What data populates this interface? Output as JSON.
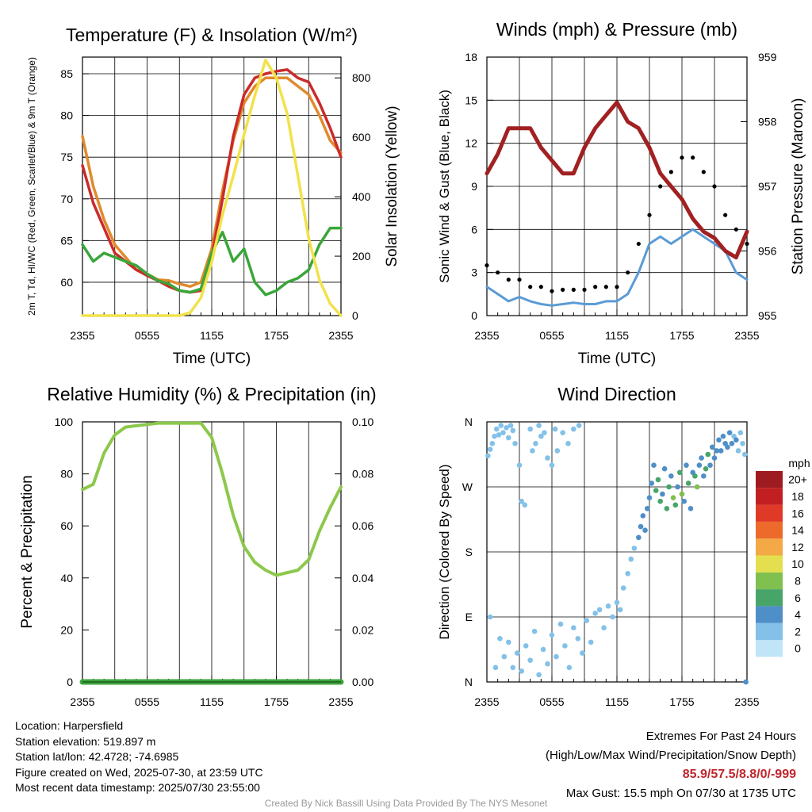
{
  "chart_data": [
    {
      "type": "line",
      "title": "Temperature (F) & Insolation (W/m²)",
      "xlabel": "Time (UTC)",
      "ylabel": "2m T, Td, HI/WC (Red, Green, Scarlet/Blue) & 9m T (Orange)",
      "ylabel_right": "Solar Insolation (Yellow)",
      "x_ticks": [
        "2355",
        "0555",
        "1155",
        "1755",
        "2355"
      ],
      "ylim": [
        56,
        87
      ],
      "y_ticks": [
        60,
        65,
        70,
        75,
        80,
        85
      ],
      "ylim_right": [
        0,
        870
      ],
      "y_ticks_right": [
        0,
        200,
        400,
        600,
        800
      ],
      "x_hours": [
        0,
        1,
        2,
        3,
        4,
        5,
        6,
        7,
        8,
        9,
        10,
        11,
        12,
        13,
        14,
        15,
        16,
        17,
        18,
        19,
        20,
        21,
        22,
        23,
        24
      ],
      "series": [
        {
          "color": "#e08a2c",
          "axis": "left",
          "values": [
            77.5,
            71.5,
            67.5,
            64.5,
            63,
            61.5,
            61,
            60.3,
            60.2,
            59.8,
            59.5,
            60,
            64,
            71,
            77,
            81.5,
            83.5,
            84.5,
            84.5,
            84.5,
            83.5,
            82.5,
            80,
            77,
            75.5
          ]
        },
        {
          "color": "#cc2a2a",
          "axis": "left",
          "values": [
            74,
            69.5,
            66.5,
            63.5,
            62.5,
            61.5,
            60.8,
            60.2,
            59.5,
            59,
            58.8,
            59,
            63,
            70,
            77.5,
            82.5,
            84.5,
            85,
            85.3,
            85.5,
            84.5,
            84,
            81.5,
            78.5,
            75
          ]
        },
        {
          "color": "#3aa63a",
          "axis": "left",
          "values": [
            64.5,
            62.5,
            63.5,
            63,
            62.5,
            62,
            61,
            60.2,
            59.8,
            59,
            58.8,
            59.2,
            63.5,
            66,
            62.5,
            64,
            60,
            58.5,
            59,
            60,
            60.5,
            61.5,
            64.5,
            66.5,
            66.5
          ]
        },
        {
          "color": "#f2e24a",
          "axis": "right",
          "values": [
            0,
            0,
            0,
            0,
            0,
            0,
            0,
            0,
            0,
            0,
            10,
            60,
            180,
            340,
            470,
            610,
            740,
            860,
            800,
            680,
            470,
            260,
            120,
            40,
            0
          ]
        }
      ]
    },
    {
      "type": "scatter",
      "title": "Winds (mph) & Pressure (mb)",
      "xlabel": "Time (UTC)",
      "ylabel": "Sonic Wind & Gust (Blue, Black)",
      "ylabel_right": "Station Pressure (Maroon)",
      "x_ticks": [
        "2355",
        "0555",
        "1155",
        "1755",
        "2355"
      ],
      "ylim": [
        0,
        18
      ],
      "y_ticks": [
        0,
        3,
        6,
        9,
        12,
        15,
        18
      ],
      "ylim_right": [
        955,
        959
      ],
      "y_ticks_right": [
        955,
        956,
        957,
        958,
        959
      ],
      "x_hours": [
        0,
        1,
        2,
        3,
        4,
        5,
        6,
        7,
        8,
        9,
        10,
        11,
        12,
        13,
        14,
        15,
        16,
        17,
        18,
        19,
        20,
        21,
        22,
        23,
        24
      ],
      "series": [
        {
          "color": "#5b9bd5",
          "axis": "left",
          "values": [
            2,
            1.5,
            1,
            1.3,
            1,
            0.8,
            0.7,
            0.8,
            0.9,
            0.8,
            0.8,
            1,
            1,
            1.5,
            3,
            5,
            5.5,
            5,
            5.5,
            6,
            5.5,
            5,
            4.5,
            3,
            2.5
          ]
        },
        {
          "color": "#000000",
          "axis": "left",
          "values": [
            3.5,
            3,
            2.5,
            2.5,
            2,
            2,
            1.7,
            1.8,
            1.8,
            1.8,
            2,
            2,
            2,
            3,
            5,
            7,
            9,
            10,
            11,
            11,
            10,
            9,
            7,
            6,
            5
          ]
        },
        {
          "color": "#a12122",
          "axis": "right",
          "values": [
            957.2,
            957.5,
            957.9,
            957.9,
            957.9,
            957.6,
            957.4,
            957.2,
            957.2,
            957.6,
            957.9,
            958.1,
            958.3,
            958.0,
            957.9,
            957.6,
            957.2,
            957.0,
            956.8,
            956.5,
            956.3,
            956.2,
            956.0,
            955.9,
            956.3
          ]
        }
      ]
    },
    {
      "type": "line",
      "title": "Relative Humidity (%) & Precipitation (in)",
      "ylabel": "Percent & Precipitation",
      "x_ticks": [
        "2355",
        "0555",
        "1155",
        "1755",
        "2355"
      ],
      "ylim": [
        0,
        100
      ],
      "y_ticks": [
        0,
        20,
        40,
        60,
        80,
        100
      ],
      "ylim_right": [
        0,
        0.1
      ],
      "y_ticks_right": [
        "0.00",
        "0.02",
        "0.04",
        "0.06",
        "0.08",
        "0.10"
      ],
      "x_hours": [
        0,
        1,
        2,
        3,
        4,
        5,
        6,
        7,
        8,
        9,
        10,
        11,
        12,
        13,
        14,
        15,
        16,
        17,
        18,
        19,
        20,
        21,
        22,
        23,
        24
      ],
      "series": [
        {
          "color": "#8cc84b",
          "axis": "left",
          "values": [
            74,
            76,
            88,
            95,
            98,
            98.5,
            99,
            99.5,
            99.5,
            99.5,
            99.5,
            99.5,
            94,
            80,
            64,
            52,
            46,
            43,
            41,
            42,
            43,
            47,
            58,
            67,
            75
          ]
        },
        {
          "color": "#3aa63a",
          "axis": "right",
          "values": [
            0,
            0,
            0,
            0,
            0,
            0,
            0,
            0,
            0,
            0,
            0,
            0,
            0,
            0,
            0,
            0,
            0,
            0,
            0,
            0,
            0,
            0,
            0,
            0,
            0
          ]
        }
      ]
    },
    {
      "type": "scatter",
      "title": "Wind Direction",
      "ylabel": "Direction (Colored By Speed)",
      "x_ticks": [
        "2355",
        "0555",
        "1155",
        "1755",
        "2355"
      ],
      "y_ticks": [
        "N",
        "E",
        "S",
        "W",
        "N"
      ],
      "ylim_deg": [
        0,
        360
      ],
      "colorbar": {
        "title": "mph",
        "labels": [
          "0",
          "2",
          "4",
          "6",
          "8",
          "10",
          "12",
          "14",
          "16",
          "18",
          "20+"
        ],
        "colors": [
          "#bfe5f7",
          "#83c1e8",
          "#4f8fc8",
          "#47a56a",
          "#7fc04f",
          "#e3df4e",
          "#f4a947",
          "#ec6a2a",
          "#df3a27",
          "#c21f22",
          "#9e1c1f"
        ]
      },
      "points_hours_deg_speed": [
        [
          0.1,
          313,
          2
        ],
        [
          0.3,
          322,
          2
        ],
        [
          0.5,
          330,
          1
        ],
        [
          0.7,
          340,
          1
        ],
        [
          0.9,
          350,
          1
        ],
        [
          1.1,
          342,
          1
        ],
        [
          1.3,
          355,
          1
        ],
        [
          1.5,
          345,
          1
        ],
        [
          1.8,
          352,
          1
        ],
        [
          2.0,
          338,
          1
        ],
        [
          2.2,
          355,
          1
        ],
        [
          2.4,
          348,
          1
        ],
        [
          2.6,
          330,
          1
        ],
        [
          3.0,
          300,
          1
        ],
        [
          3.2,
          250,
          1
        ],
        [
          3.5,
          245,
          1
        ],
        [
          4.0,
          350,
          1
        ],
        [
          4.2,
          320,
          1
        ],
        [
          4.5,
          330,
          1
        ],
        [
          4.8,
          355,
          1
        ],
        [
          5.0,
          340,
          1
        ],
        [
          5.3,
          345,
          2
        ],
        [
          5.6,
          310,
          1
        ],
        [
          6.0,
          300,
          1
        ],
        [
          6.3,
          350,
          1
        ],
        [
          6.5,
          320,
          1
        ],
        [
          7.0,
          345,
          1
        ],
        [
          7.5,
          330,
          1
        ],
        [
          8.0,
          350,
          1
        ],
        [
          8.5,
          355,
          1
        ],
        [
          0.3,
          90,
          1
        ],
        [
          0.8,
          20,
          1
        ],
        [
          1.2,
          60,
          1
        ],
        [
          1.6,
          35,
          1
        ],
        [
          2.0,
          55,
          1
        ],
        [
          2.4,
          20,
          1
        ],
        [
          2.8,
          40,
          1
        ],
        [
          3.2,
          15,
          1
        ],
        [
          3.6,
          50,
          1
        ],
        [
          4.0,
          30,
          1
        ],
        [
          4.4,
          70,
          1
        ],
        [
          4.8,
          10,
          1
        ],
        [
          5.2,
          45,
          1
        ],
        [
          5.6,
          25,
          1
        ],
        [
          6.0,
          65,
          1
        ],
        [
          6.4,
          35,
          1
        ],
        [
          6.8,
          80,
          1
        ],
        [
          7.2,
          50,
          1
        ],
        [
          7.6,
          20,
          1
        ],
        [
          8.0,
          75,
          1
        ],
        [
          8.4,
          60,
          1
        ],
        [
          8.8,
          40,
          1
        ],
        [
          9.2,
          85,
          1
        ],
        [
          9.6,
          55,
          1
        ],
        [
          10.0,
          95,
          1
        ],
        [
          10.4,
          100,
          1
        ],
        [
          10.8,
          75,
          1
        ],
        [
          11.2,
          105,
          1
        ],
        [
          11.6,
          90,
          1
        ],
        [
          12.0,
          110,
          1
        ],
        [
          12.3,
          100,
          2
        ],
        [
          12.6,
          130,
          2
        ],
        [
          13.0,
          150,
          1
        ],
        [
          13.3,
          170,
          1
        ],
        [
          13.6,
          185,
          2
        ],
        [
          14.0,
          200,
          4
        ],
        [
          14.2,
          215,
          4
        ],
        [
          14.4,
          230,
          4
        ],
        [
          14.6,
          210,
          3
        ],
        [
          14.8,
          240,
          4
        ],
        [
          15.0,
          255,
          4
        ],
        [
          15.2,
          275,
          4
        ],
        [
          15.4,
          300,
          4
        ],
        [
          15.6,
          265,
          6
        ],
        [
          15.8,
          280,
          5
        ],
        [
          16.0,
          250,
          6
        ],
        [
          16.2,
          260,
          4
        ],
        [
          16.4,
          295,
          4
        ],
        [
          16.6,
          240,
          5
        ],
        [
          16.8,
          270,
          6
        ],
        [
          17.0,
          285,
          4
        ],
        [
          17.2,
          255,
          8
        ],
        [
          17.4,
          245,
          6
        ],
        [
          17.6,
          270,
          4
        ],
        [
          17.8,
          290,
          6
        ],
        [
          18.0,
          260,
          8
        ],
        [
          18.2,
          250,
          4
        ],
        [
          18.4,
          300,
          4
        ],
        [
          18.6,
          275,
          5
        ],
        [
          18.8,
          240,
          4
        ],
        [
          19.0,
          290,
          4
        ],
        [
          19.2,
          285,
          6
        ],
        [
          19.4,
          270,
          8
        ],
        [
          19.6,
          300,
          4
        ],
        [
          19.8,
          310,
          4
        ],
        [
          20.0,
          285,
          4
        ],
        [
          20.2,
          295,
          6
        ],
        [
          20.4,
          315,
          5
        ],
        [
          20.6,
          300,
          4
        ],
        [
          20.8,
          325,
          4
        ],
        [
          21.0,
          310,
          4
        ],
        [
          21.2,
          320,
          3
        ],
        [
          21.4,
          335,
          4
        ],
        [
          21.6,
          320,
          4
        ],
        [
          21.8,
          340,
          3
        ],
        [
          22.0,
          330,
          4
        ],
        [
          22.2,
          325,
          4
        ],
        [
          22.4,
          345,
          3
        ],
        [
          22.6,
          330,
          3
        ],
        [
          22.8,
          340,
          2
        ],
        [
          23.0,
          335,
          3
        ],
        [
          23.2,
          320,
          2
        ],
        [
          23.4,
          345,
          2
        ],
        [
          23.6,
          330,
          2
        ],
        [
          23.8,
          315,
          2
        ],
        [
          23.9,
          0,
          4
        ]
      ]
    }
  ],
  "footer_left": {
    "location": "Location: Harpersfield",
    "elevation": "Station elevation: 519.897 m",
    "latlon": "Station lat/lon: 42.4728; -74.6985",
    "created": "Figure created on Wed, 2025-07-30, at 23:59 UTC",
    "recent": "Most recent data timestamp: 2025/07/30 23:55:00"
  },
  "footer_right": {
    "title": "Extremes For Past 24 Hours",
    "legend": "(High/Low/Max Wind/Precipitation/Snow Depth)",
    "values": "85.9/57.5/8.8/0/-999",
    "max_gust": "Max Gust: 15.5 mph On 07/30 at 1735 UTC"
  },
  "credit": "Created By Nick Bassill Using Data Provided By The NYS Mesonet"
}
